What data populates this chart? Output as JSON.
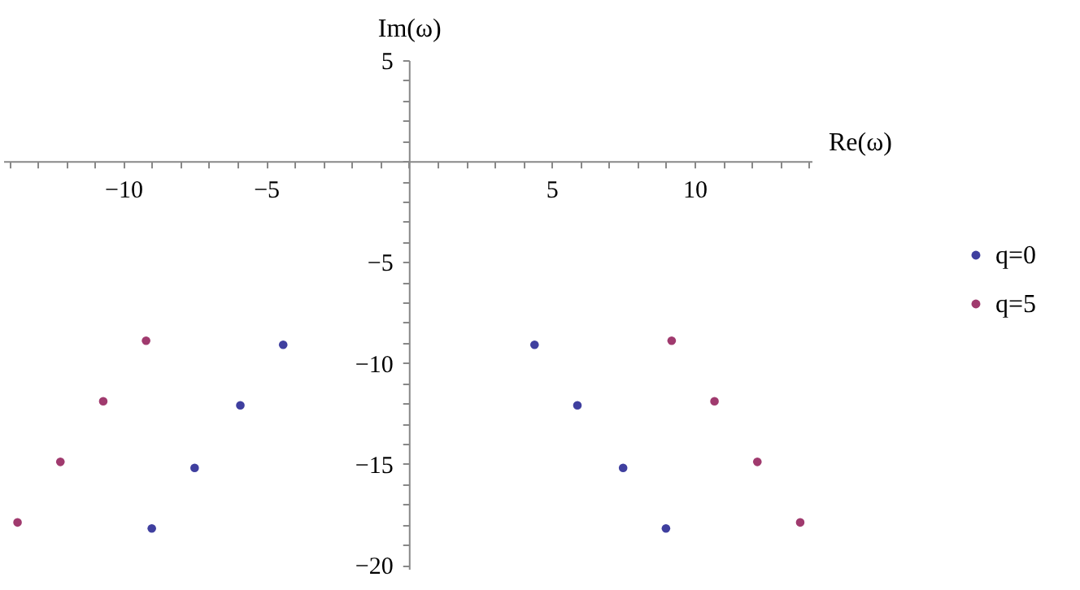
{
  "chart_data": {
    "type": "scatter",
    "xlabel": "Re(ω)",
    "ylabel": "Im(ω)",
    "xlim": [
      -14.2,
      14.1
    ],
    "ylim": [
      -20.2,
      5
    ],
    "xticks": [
      {
        "value": -14,
        "label": null
      },
      {
        "value": -13,
        "label": null
      },
      {
        "value": -12,
        "label": null
      },
      {
        "value": -11,
        "label": null
      },
      -10,
      {
        "value": -9,
        "label": null
      },
      {
        "value": -8,
        "label": null
      },
      {
        "value": -7,
        "label": null
      },
      {
        "value": -6,
        "label": null
      },
      -5,
      {
        "value": -4,
        "label": null
      },
      {
        "value": -3,
        "label": null
      },
      {
        "value": -2,
        "label": null
      },
      {
        "value": -1,
        "label": null
      },
      {
        "value": 0,
        "label": null
      },
      {
        "value": 1,
        "label": null
      },
      {
        "value": 2,
        "label": null
      },
      {
        "value": 3,
        "label": null
      },
      {
        "value": 4,
        "label": null
      },
      5,
      {
        "value": 6,
        "label": null
      },
      {
        "value": 7,
        "label": null
      },
      {
        "value": 8,
        "label": null
      },
      {
        "value": 9,
        "label": null
      },
      10,
      {
        "value": 11,
        "label": null
      },
      {
        "value": 12,
        "label": null
      },
      {
        "value": 13,
        "label": null
      },
      {
        "value": 14,
        "label": null
      }
    ],
    "yticks": [
      -20,
      {
        "value": -19,
        "label": null
      },
      {
        "value": -18,
        "label": null
      },
      {
        "value": -17,
        "label": null
      },
      {
        "value": -16,
        "label": null
      },
      -15,
      {
        "value": -14,
        "label": null
      },
      {
        "value": -13,
        "label": null
      },
      {
        "value": -12,
        "label": null
      },
      {
        "value": -11,
        "label": null
      },
      -10,
      {
        "value": -9,
        "label": null
      },
      {
        "value": -8,
        "label": null
      },
      {
        "value": -7,
        "label": null
      },
      {
        "value": -6,
        "label": null
      },
      -5,
      {
        "value": -4,
        "label": null
      },
      {
        "value": -3,
        "label": null
      },
      {
        "value": -2,
        "label": null
      },
      {
        "value": -1,
        "label": null
      },
      {
        "value": 0,
        "label": null
      },
      {
        "value": 1,
        "label": null
      },
      {
        "value": 2,
        "label": null
      },
      {
        "value": 3,
        "label": null
      },
      {
        "value": 4,
        "label": null
      },
      5
    ],
    "grid": false,
    "legend": "right",
    "marker": "circle",
    "series": [
      {
        "name": "q=0",
        "color": "#3f3f9f",
        "x": [
          -4.4,
          -5.9,
          -7.5,
          -9.0,
          4.4,
          5.9,
          7.5,
          9.0
        ],
        "values": [
          -9.1,
          -12.1,
          -15.2,
          -18.2,
          -9.1,
          -12.1,
          -15.2,
          -18.2
        ]
      },
      {
        "name": "q=5",
        "color": "#a03a6e",
        "x": [
          -9.2,
          -10.7,
          -12.2,
          -13.7,
          9.2,
          10.7,
          12.2,
          13.7
        ],
        "values": [
          -8.9,
          -11.9,
          -14.9,
          -17.9,
          -8.9,
          -11.9,
          -14.9,
          -17.9
        ]
      }
    ]
  }
}
